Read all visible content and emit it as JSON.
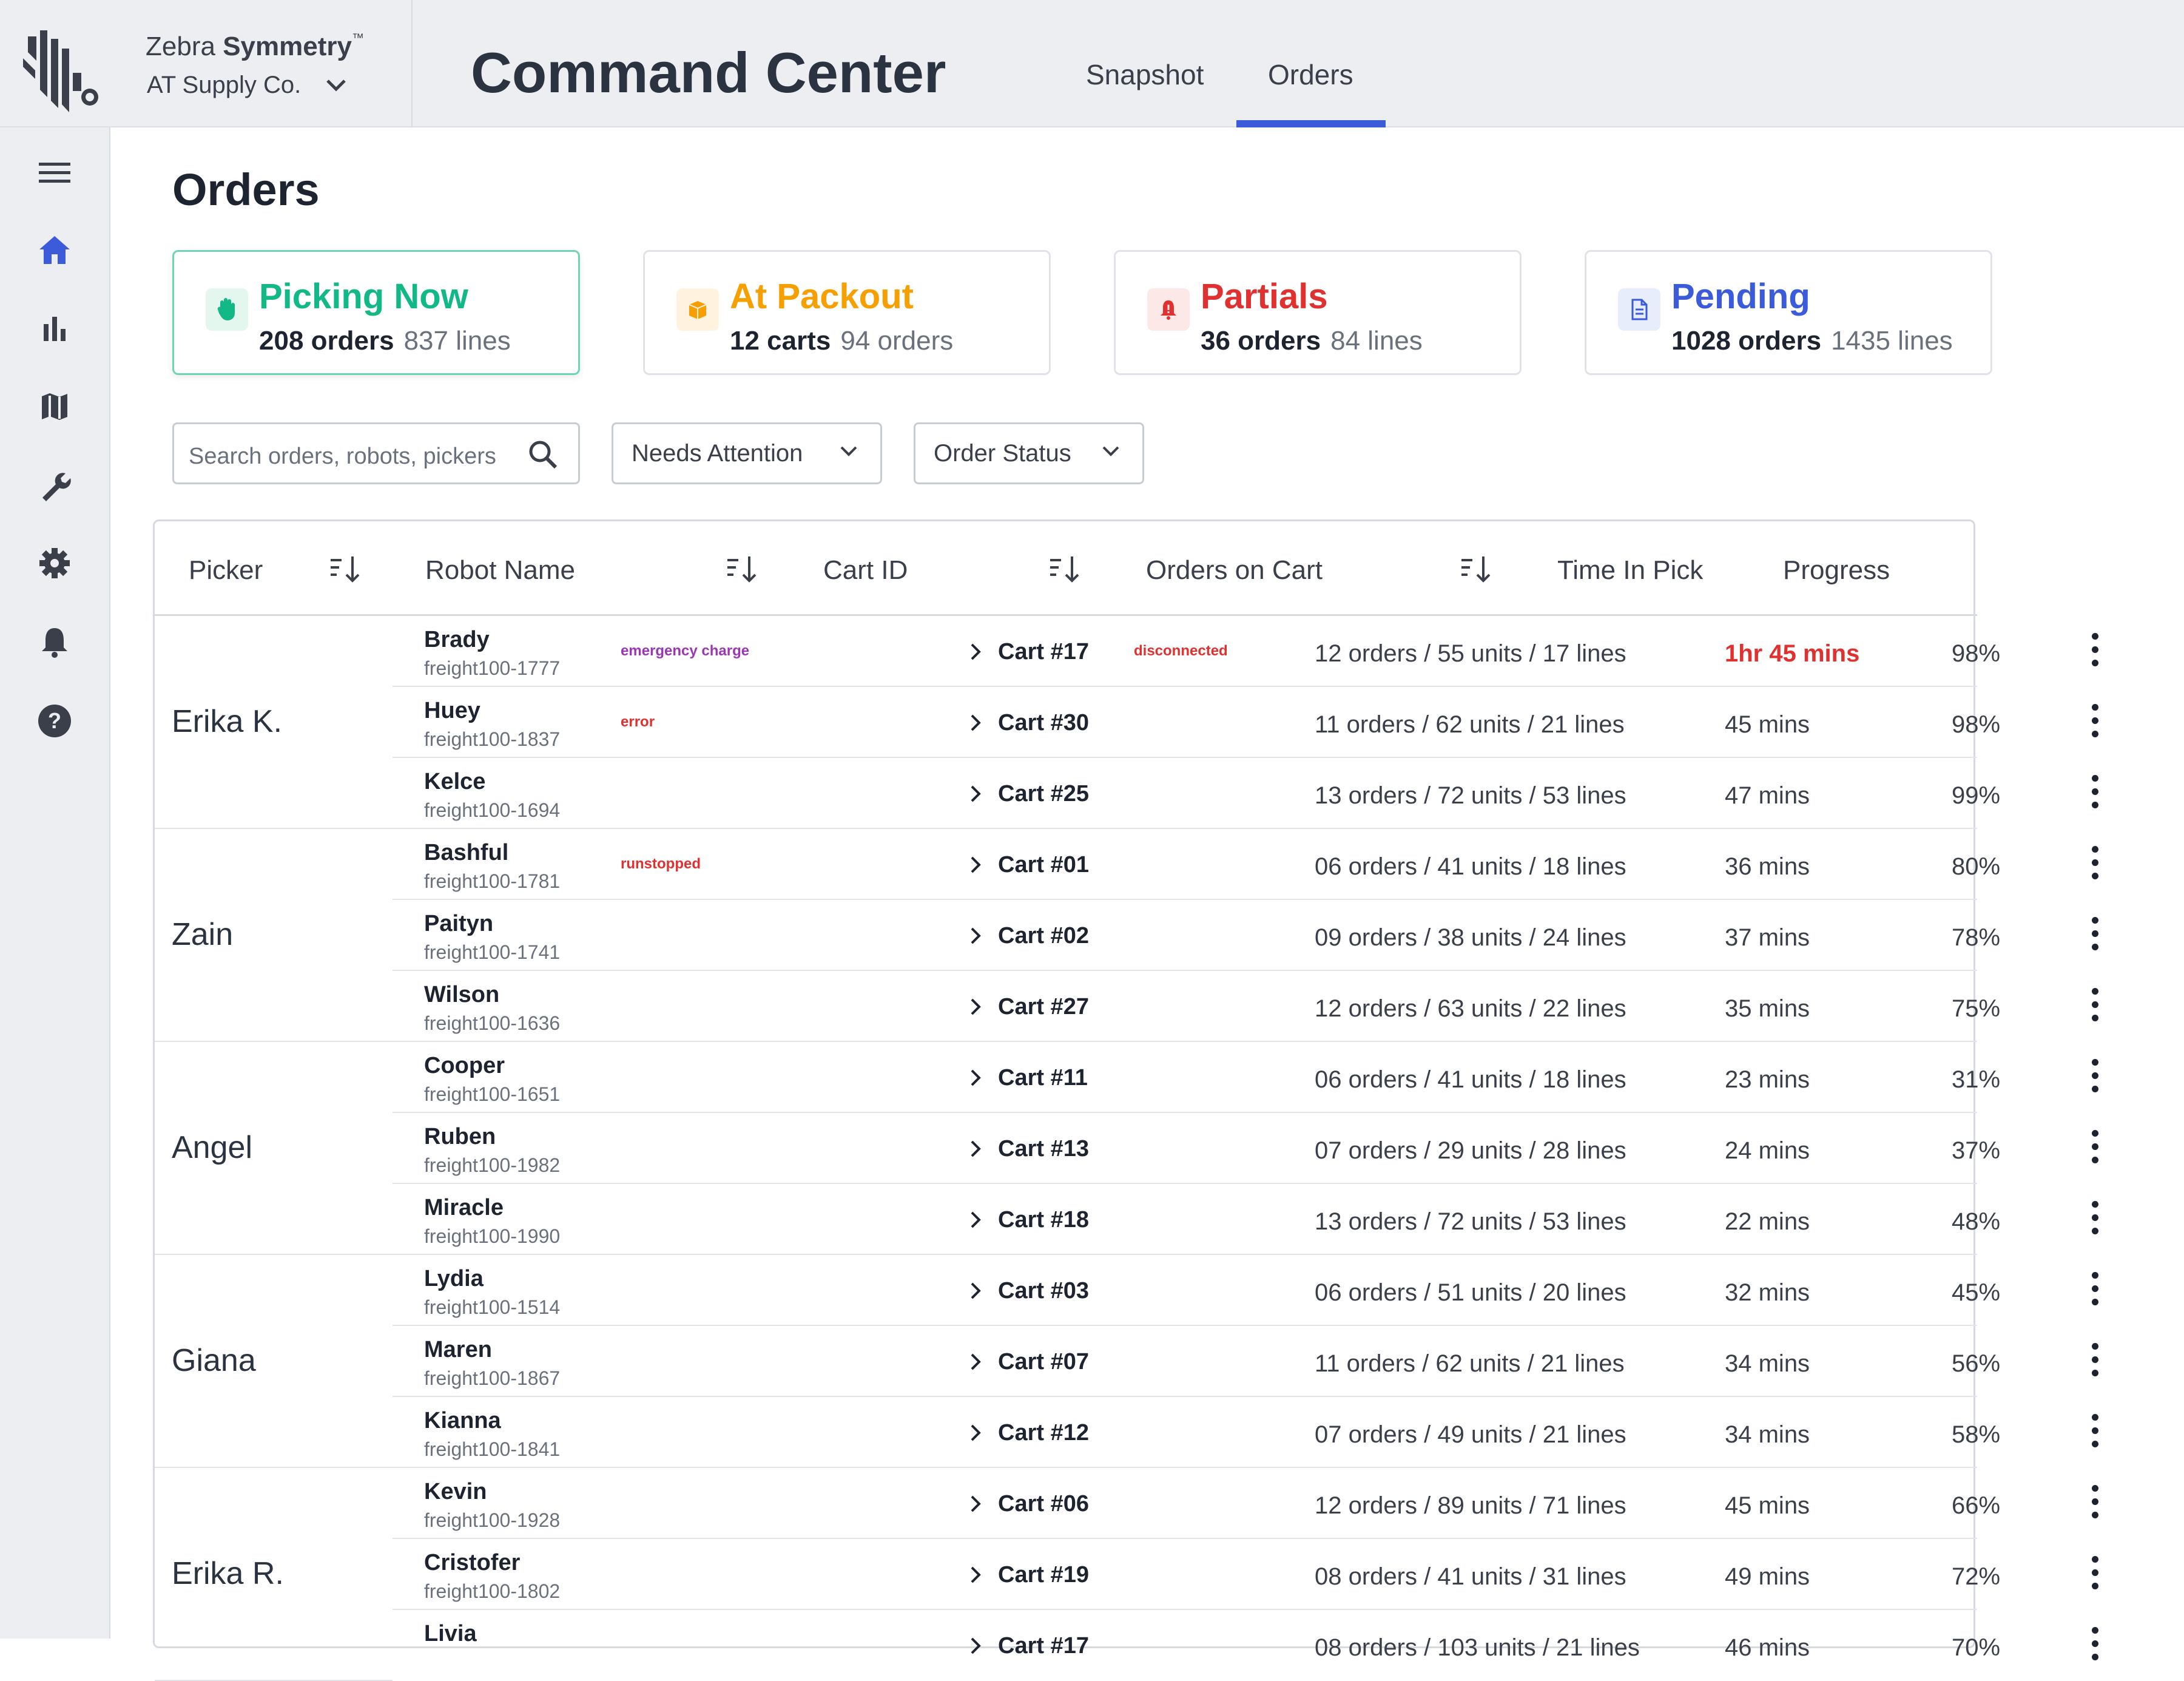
{
  "header": {
    "brand_prefix": "Zebra",
    "brand_bold": "Symmetry",
    "brand_tm": "™",
    "org": "AT Supply Co.",
    "app_title": "Command Center",
    "tabs": [
      {
        "label": "Snapshot"
      },
      {
        "label": "Orders",
        "active": true
      }
    ]
  },
  "sidebar": {
    "items": [
      {
        "icon": "menu-icon"
      },
      {
        "icon": "home-icon",
        "active": true
      },
      {
        "icon": "bar-chart-icon"
      },
      {
        "icon": "map-icon"
      },
      {
        "icon": "wrench-icon"
      },
      {
        "icon": "gear-icon"
      },
      {
        "icon": "bell-icon"
      },
      {
        "icon": "help-icon"
      }
    ]
  },
  "page": {
    "title": "Orders"
  },
  "cards": [
    {
      "title": "Picking Now",
      "main": "208 orders",
      "secondary": "837 lines",
      "color": "#12b886",
      "icon": "hand-icon"
    },
    {
      "title": "At Packout",
      "main": "12 carts",
      "secondary": "94 orders",
      "color": "#f59f00",
      "icon": "box-icon"
    },
    {
      "title": "Partials",
      "main": "36 orders",
      "secondary": "84 lines",
      "color": "#e03131",
      "icon": "alert-bell-icon"
    },
    {
      "title": "Pending",
      "main": "1028 orders",
      "secondary": "1435 lines",
      "color": "#3b5bdb",
      "icon": "document-icon"
    }
  ],
  "filters": {
    "search_placeholder": "Search orders, robots, pickers",
    "dropdown1": "Needs Attention",
    "dropdown2": "Order Status"
  },
  "table": {
    "headers": {
      "picker": "Picker",
      "robot": "Robot Name",
      "cart": "Cart ID",
      "orders": "Orders on Cart",
      "time": "Time In Pick",
      "progress": "Progress"
    },
    "groups": [
      {
        "picker": "Erika K.",
        "rows": [
          {
            "robot": "Brady",
            "robot_id": "freight100-1777",
            "robot_tag": "emergency charge",
            "robot_tag_color": "#9c36b5",
            "cart": "Cart #17",
            "cart_tag": "disconnected",
            "orders": "12 orders / 55 units / 17 lines",
            "time": "1hr 45 mins",
            "time_alert": true,
            "progress": "98%"
          },
          {
            "robot": "Huey",
            "robot_id": "freight100-1837",
            "robot_tag": "error",
            "robot_tag_color": "#e03131",
            "cart": "Cart #30",
            "cart_tag": "",
            "orders": "11 orders / 62 units / 21 lines",
            "time": "45 mins",
            "progress": "98%"
          },
          {
            "robot": "Kelce",
            "robot_id": "freight100-1694",
            "robot_tag": "",
            "cart": "Cart #25",
            "cart_tag": "",
            "orders": "13 orders / 72 units / 53 lines",
            "time": "47 mins",
            "progress": "99%"
          }
        ]
      },
      {
        "picker": "Zain",
        "rows": [
          {
            "robot": "Bashful",
            "robot_id": "freight100-1781",
            "robot_tag": "runstopped",
            "robot_tag_color": "#e03131",
            "cart": "Cart #01",
            "cart_tag": "",
            "orders": "06 orders / 41 units / 18 lines",
            "time": "36 mins",
            "progress": "80%"
          },
          {
            "robot": "Paityn",
            "robot_id": "freight100-1741",
            "robot_tag": "",
            "cart": "Cart #02",
            "cart_tag": "",
            "orders": "09 orders / 38 units / 24 lines",
            "time": "37 mins",
            "progress": "78%"
          },
          {
            "robot": "Wilson",
            "robot_id": "freight100-1636",
            "robot_tag": "",
            "cart": "Cart #27",
            "cart_tag": "",
            "orders": "12 orders / 63 units / 22 lines",
            "time": "35 mins",
            "progress": "75%"
          }
        ]
      },
      {
        "picker": "Angel",
        "rows": [
          {
            "robot": "Cooper",
            "robot_id": "freight100-1651",
            "robot_tag": "",
            "cart": "Cart #11",
            "cart_tag": "",
            "orders": "06 orders / 41 units / 18 lines",
            "time": "23 mins",
            "progress": "31%"
          },
          {
            "robot": "Ruben",
            "robot_id": "freight100-1982",
            "robot_tag": "",
            "cart": "Cart #13",
            "cart_tag": "",
            "orders": "07 orders / 29 units / 28 lines",
            "time": "24 mins",
            "progress": "37%"
          },
          {
            "robot": "Miracle",
            "robot_id": "freight100-1990",
            "robot_tag": "",
            "cart": "Cart #18",
            "cart_tag": "",
            "orders": "13 orders / 72 units / 53 lines",
            "time": "22 mins",
            "progress": "48%"
          }
        ]
      },
      {
        "picker": "Giana",
        "rows": [
          {
            "robot": "Lydia",
            "robot_id": "freight100-1514",
            "robot_tag": "",
            "cart": "Cart #03",
            "cart_tag": "",
            "orders": "06 orders / 51 units / 20 lines",
            "time": "32 mins",
            "progress": "45%"
          },
          {
            "robot": "Maren",
            "robot_id": "freight100-1867",
            "robot_tag": "",
            "cart": "Cart #07",
            "cart_tag": "",
            "orders": "11 orders / 62 units / 21 lines",
            "time": "34 mins",
            "progress": "56%"
          },
          {
            "robot": "Kianna",
            "robot_id": "freight100-1841",
            "robot_tag": "",
            "cart": "Cart #12",
            "cart_tag": "",
            "orders": "07 orders / 49 units / 21 lines",
            "time": "34 mins",
            "progress": "58%"
          }
        ]
      },
      {
        "picker": "Erika R.",
        "rows": [
          {
            "robot": "Kevin",
            "robot_id": "freight100-1928",
            "robot_tag": "",
            "cart": "Cart #06",
            "cart_tag": "",
            "orders": "12 orders / 89 units / 71 lines",
            "time": "45 mins",
            "progress": "66%"
          },
          {
            "robot": "Cristofer",
            "robot_id": "freight100-1802",
            "robot_tag": "",
            "cart": "Cart #19",
            "cart_tag": "",
            "orders": "08 orders / 41 units / 31 lines",
            "time": "49 mins",
            "progress": "72%"
          },
          {
            "robot": "Livia",
            "robot_id": "",
            "robot_tag": "",
            "cart": "Cart #17",
            "cart_tag": "",
            "orders": "08 orders / 103 units / 21 lines",
            "time": "46 mins",
            "progress": "70%"
          }
        ]
      }
    ]
  }
}
